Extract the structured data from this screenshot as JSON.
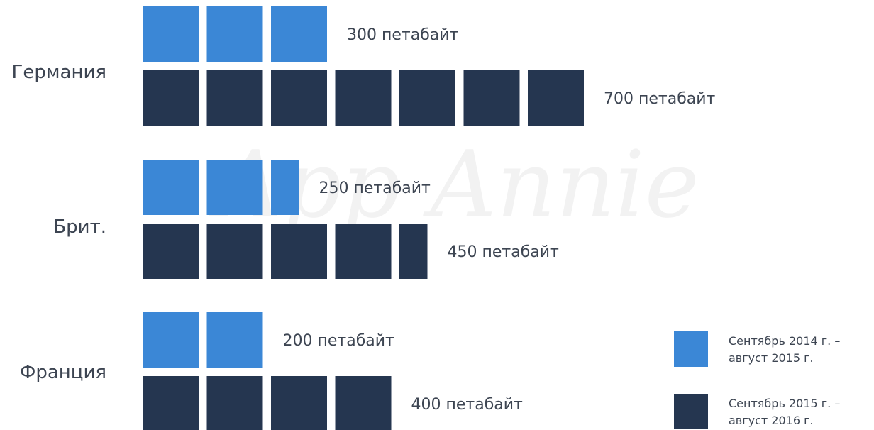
{
  "chart_data": {
    "type": "bar",
    "unit_block_value": 100,
    "categories": [
      "Германия",
      "Брит.",
      "Франция"
    ],
    "series": [
      {
        "name": "Сентябрь 2014 г. – август 2015 г.",
        "color": "#3b87d6",
        "values": [
          300,
          250,
          200
        ],
        "labels": [
          "300 петабайт",
          "250 петабайт",
          "200 петабайт"
        ]
      },
      {
        "name": "Сентябрь 2015 г. – август 2016 г.",
        "color": "#253650",
        "values": [
          700,
          450,
          400
        ],
        "labels": [
          "700 петабайт",
          "450 петабайт",
          "400 петабайт"
        ]
      }
    ],
    "legend": {
      "position": "bottom-right",
      "items": [
        {
          "line1": "Сентябрь 2014 г. –",
          "line2": "август 2015 г.",
          "color": "#3b87d6"
        },
        {
          "line1": "Сентябрь 2015 г. –",
          "line2": "август 2016 г.",
          "color": "#253650"
        }
      ]
    },
    "watermark": "App Annie"
  }
}
